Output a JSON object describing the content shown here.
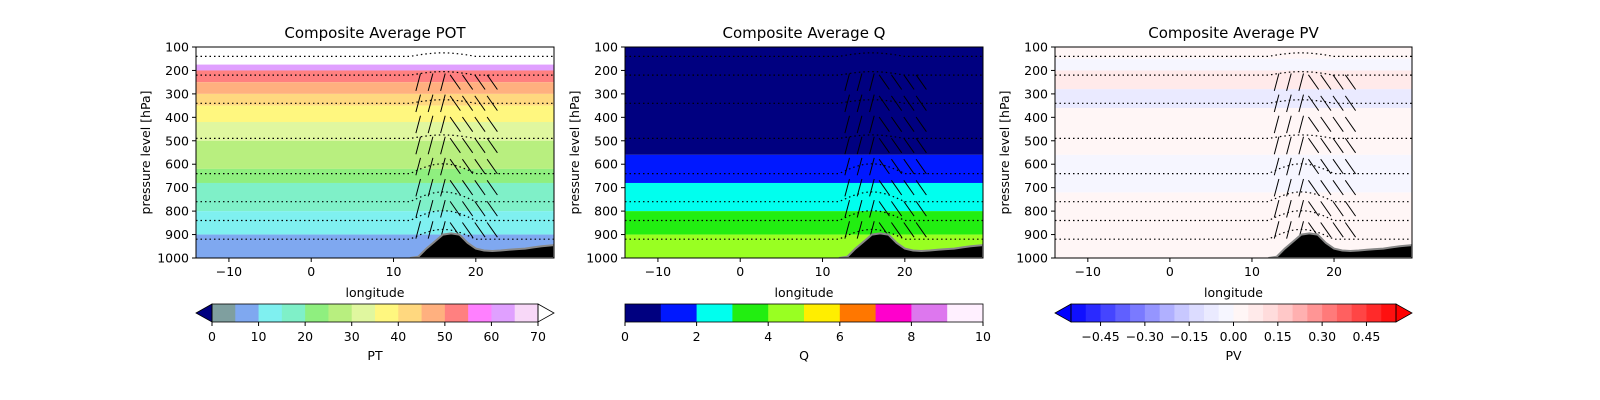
{
  "chart_data": [
    {
      "type": "heatmap",
      "title": "Composite Average POT",
      "xlabel": "longitude",
      "ylabel": "pressure level [hPa]",
      "xlim": [
        -14,
        29.5
      ],
      "ylim": [
        1000,
        100
      ],
      "xticks": [
        -10,
        0,
        10,
        20
      ],
      "yticks": [
        100,
        200,
        300,
        400,
        500,
        600,
        700,
        800,
        900,
        1000
      ],
      "colorbar": {
        "label": "PT",
        "ticks": [
          0,
          10,
          20,
          30,
          40,
          50,
          60,
          70
        ],
        "levels": [
          0,
          5,
          10,
          15,
          20,
          25,
          30,
          35,
          40,
          45,
          50,
          55,
          60,
          65,
          70
        ],
        "colors": [
          "#7f9f9f",
          "#7fa8f0",
          "#7ff0f0",
          "#7ff0c8",
          "#8fef7f",
          "#b8ef7f",
          "#e0f79f",
          "#fff77f",
          "#ffd87f",
          "#ffb07f",
          "#ff8080",
          "#ff80ff",
          "#e0a0ff",
          "#f8d8f8"
        ],
        "extend": "both",
        "under_color": "#000080",
        "over_color": "#ffffff"
      },
      "layers": [
        {
          "p_top": 100,
          "p_bottom": 175,
          "value": 72
        },
        {
          "p_top": 175,
          "p_bottom": 200,
          "value": 62
        },
        {
          "p_top": 200,
          "p_bottom": 250,
          "value": 53
        },
        {
          "p_top": 250,
          "p_bottom": 300,
          "value": 47
        },
        {
          "p_top": 300,
          "p_bottom": 350,
          "value": 42
        },
        {
          "p_top": 350,
          "p_bottom": 420,
          "value": 37
        },
        {
          "p_top": 420,
          "p_bottom": 500,
          "value": 33
        },
        {
          "p_top": 500,
          "p_bottom": 620,
          "value": 27
        },
        {
          "p_top": 620,
          "p_bottom": 680,
          "value": 22
        },
        {
          "p_top": 680,
          "p_bottom": 800,
          "value": 18
        },
        {
          "p_top": 800,
          "p_bottom": 900,
          "value": 13
        },
        {
          "p_top": 900,
          "p_bottom": 1000,
          "value": 8
        }
      ]
    },
    {
      "type": "heatmap",
      "title": "Composite Average Q",
      "xlabel": "longitude",
      "ylabel": "pressure level [hPa]",
      "xlim": [
        -14,
        29.5
      ],
      "ylim": [
        1000,
        100
      ],
      "xticks": [
        -10,
        0,
        10,
        20
      ],
      "yticks": [
        100,
        200,
        300,
        400,
        500,
        600,
        700,
        800,
        900,
        1000
      ],
      "colorbar": {
        "label": "Q",
        "ticks": [
          0,
          2,
          4,
          6,
          8,
          10
        ],
        "levels": [
          0,
          1,
          2,
          3,
          4,
          5,
          6,
          7,
          8,
          9,
          10
        ],
        "colors": [
          "#000080",
          "#0018ff",
          "#00ffee",
          "#22ee11",
          "#99ff22",
          "#ffee00",
          "#ff7700",
          "#ff00cc",
          "#dd77ee",
          "#fff0ff"
        ],
        "extend": "neither"
      },
      "layers": [
        {
          "p_top": 100,
          "p_bottom": 560,
          "value": 0.5
        },
        {
          "p_top": 560,
          "p_bottom": 680,
          "value": 1.5
        },
        {
          "p_top": 680,
          "p_bottom": 800,
          "value": 2.5
        },
        {
          "p_top": 800,
          "p_bottom": 900,
          "value": 3.5
        },
        {
          "p_top": 900,
          "p_bottom": 1000,
          "value": 4.5
        }
      ]
    },
    {
      "type": "heatmap",
      "title": "Composite Average PV",
      "xlabel": "longitude",
      "ylabel": "pressure level [hPa]",
      "xlim": [
        -14,
        29.5
      ],
      "ylim": [
        1000,
        100
      ],
      "xticks": [
        -10,
        0,
        10,
        20
      ],
      "yticks": [
        100,
        200,
        300,
        400,
        500,
        600,
        700,
        800,
        900,
        1000
      ],
      "colorbar": {
        "label": "PV",
        "ticks": [
          -0.45,
          -0.3,
          -0.15,
          0.0,
          0.15,
          0.3,
          0.45
        ],
        "tick_labels": [
          "−0.45",
          "−0.30",
          "−0.15",
          "0.00",
          "0.15",
          "0.30",
          "0.45"
        ],
        "levels": [
          -0.55,
          -0.5,
          -0.45,
          -0.4,
          -0.35,
          -0.3,
          -0.25,
          -0.2,
          -0.15,
          -0.1,
          -0.05,
          0.0,
          0.05,
          0.1,
          0.15,
          0.2,
          0.25,
          0.3,
          0.35,
          0.4,
          0.45,
          0.5,
          0.55
        ],
        "colors": [
          "#1010ff",
          "#2a2aff",
          "#4545ff",
          "#6060ff",
          "#7a7aff",
          "#9595ff",
          "#b0b0ff",
          "#c8c8ff",
          "#dcdcff",
          "#eaeaff",
          "#f6f6ff",
          "#fff6f6",
          "#ffeaea",
          "#ffdcdc",
          "#ffc8c8",
          "#ffb0b0",
          "#ff9595",
          "#ff7a7a",
          "#ff6060",
          "#ff4545",
          "#ff2a2a",
          "#ff1010"
        ],
        "extend": "both",
        "under_color": "#0000ff",
        "over_color": "#ff0000"
      },
      "layers": [
        {
          "p_top": 100,
          "p_bottom": 150,
          "value": 0.02
        },
        {
          "p_top": 150,
          "p_bottom": 200,
          "value": -0.03
        },
        {
          "p_top": 200,
          "p_bottom": 280,
          "value": 0.08
        },
        {
          "p_top": 280,
          "p_bottom": 360,
          "value": -0.07
        },
        {
          "p_top": 360,
          "p_bottom": 560,
          "value": 0.02
        },
        {
          "p_top": 560,
          "p_bottom": 720,
          "value": -0.02
        },
        {
          "p_top": 720,
          "p_bottom": 1000,
          "value": 0.02
        }
      ]
    }
  ],
  "flow_lines_hpa": [
    140,
    220,
    340,
    490,
    640,
    760,
    840,
    920
  ],
  "terrain": {
    "longitudes": [
      12,
      13,
      14,
      15,
      16,
      17,
      18,
      19,
      20,
      21,
      22,
      23,
      24,
      25,
      26,
      27,
      28,
      29.5
    ],
    "pressure_hpa": [
      1000,
      995,
      960,
      930,
      900,
      895,
      900,
      935,
      960,
      968,
      970,
      968,
      965,
      962,
      960,
      955,
      950,
      945
    ]
  }
}
